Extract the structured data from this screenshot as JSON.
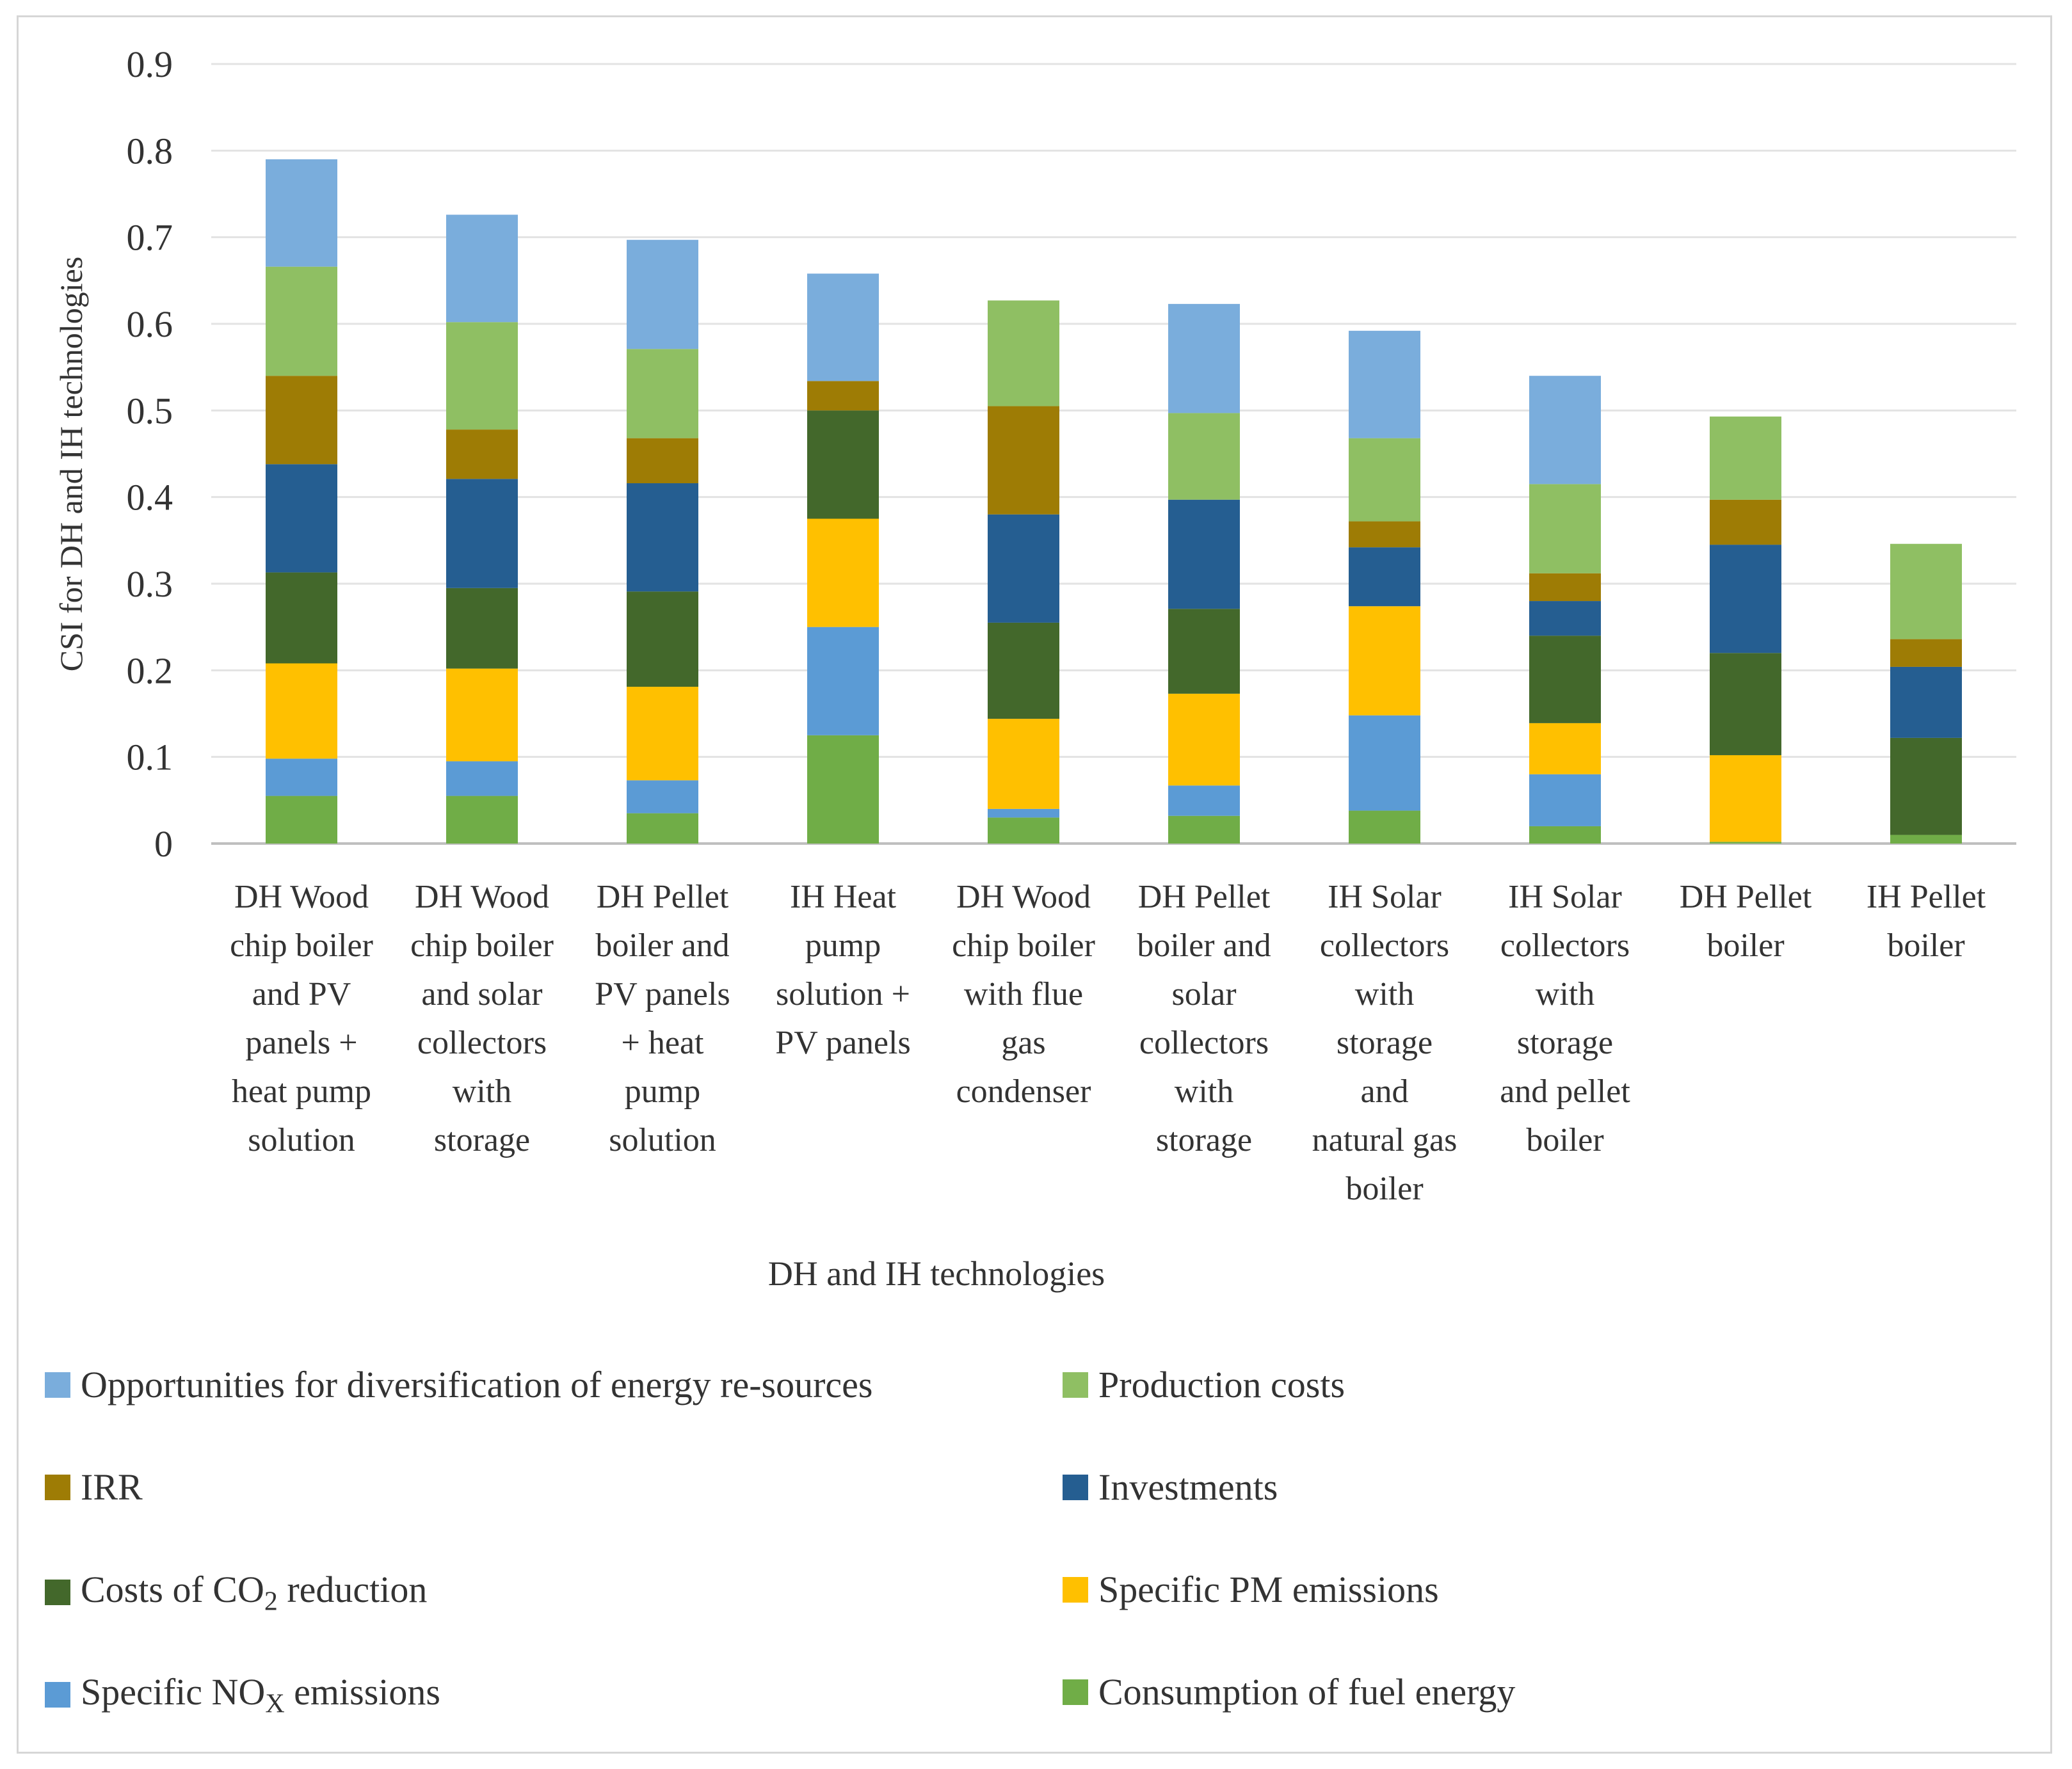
{
  "chart_data": {
    "type": "bar",
    "stacked": true,
    "title": "",
    "ylabel": "CSI  for DH and IH technologies",
    "xlabel": "DH and IH technologies",
    "ylim": [
      0,
      0.9
    ],
    "yticks": [
      "0",
      "0.1",
      "0.2",
      "0.3",
      "0.4",
      "0.5",
      "0.6",
      "0.7",
      "0.8",
      "0.9"
    ],
    "grid": true,
    "legend_position": "bottom",
    "categories": [
      [
        "DH Wood",
        "chip boiler",
        "and PV",
        "panels +",
        "heat pump",
        "solution"
      ],
      [
        "DH Wood",
        "chip boiler",
        "and solar",
        "collectors",
        "with",
        "storage"
      ],
      [
        "DH Pellet",
        "boiler and",
        "PV panels",
        "+ heat",
        "pump",
        "solution"
      ],
      [
        "IH Heat",
        "pump",
        "solution +",
        "PV panels"
      ],
      [
        "DH Wood",
        "chip boiler",
        "with flue",
        "gas",
        "condenser"
      ],
      [
        "DH Pellet",
        "boiler and",
        "solar",
        "collectors",
        "with",
        "storage"
      ],
      [
        "IH Solar",
        "collectors",
        "with",
        "storage",
        "and",
        "natural gas",
        "boiler"
      ],
      [
        "IH Solar",
        "collectors",
        "with",
        "storage",
        "and  pellet",
        "boiler"
      ],
      [
        "DH Pellet",
        "boiler"
      ],
      [
        "IH Pellet",
        "boiler"
      ]
    ],
    "series": [
      {
        "name": "Consumption of fuel energy",
        "color": "#70ad47",
        "values": [
          0.055,
          0.055,
          0.035,
          0.125,
          0.03,
          0.032,
          0.038,
          0.02,
          0.002,
          0.01
        ]
      },
      {
        "name": "Specific NOx emissions",
        "color": "#5b9bd5",
        "values": [
          0.043,
          0.04,
          0.038,
          0.125,
          0.01,
          0.035,
          0.11,
          0.06,
          0.0,
          0.0
        ]
      },
      {
        "name": "Specific PM emissions",
        "color": "#ffc000",
        "values": [
          0.11,
          0.107,
          0.108,
          0.125,
          0.104,
          0.106,
          0.126,
          0.059,
          0.1,
          0.0
        ]
      },
      {
        "name": "Costs of CO2 reduction",
        "color": "#43682b",
        "values": [
          0.105,
          0.093,
          0.11,
          0.125,
          0.111,
          0.098,
          0.0,
          0.101,
          0.118,
          0.112
        ]
      },
      {
        "name": "Investments",
        "color": "#255e91",
        "values": [
          0.125,
          0.126,
          0.125,
          0.0,
          0.125,
          0.126,
          0.068,
          0.04,
          0.125,
          0.082
        ]
      },
      {
        "name": "IRR",
        "color": "#9e7c05",
        "values": [
          0.102,
          0.057,
          0.052,
          0.034,
          0.125,
          0.0,
          0.03,
          0.032,
          0.052,
          0.032
        ]
      },
      {
        "name": "Production costs",
        "color": "#8fbf63",
        "values": [
          0.126,
          0.124,
          0.103,
          0.0,
          0.122,
          0.1,
          0.096,
          0.103,
          0.096,
          0.11
        ]
      },
      {
        "name": "Opportunities for diversification of energy re-sources",
        "color": "#7aaddc",
        "values": [
          0.124,
          0.124,
          0.126,
          0.124,
          0.0,
          0.126,
          0.124,
          0.125,
          0.0,
          0.0
        ]
      }
    ]
  },
  "legend": [
    {
      "text": "Opportunities for diversification of energy re-sources",
      "color": "#7aaddc"
    },
    {
      "text": "Production costs",
      "color": "#8fbf63"
    },
    {
      "text": "IRR",
      "color": "#9e7c05"
    },
    {
      "text": "Investments",
      "color": "#255e91"
    },
    {
      "pre": "Costs of CO",
      "sub": "2",
      "post": " reduction",
      "color": "#43682b"
    },
    {
      "text": "Specific PM emissions",
      "color": "#ffc000"
    },
    {
      "pre": "Specific NO",
      "sub": "X",
      "post": " emissions",
      "color": "#5b9bd5"
    },
    {
      "text": "Consumption of fuel energy",
      "color": "#70ad47"
    }
  ]
}
